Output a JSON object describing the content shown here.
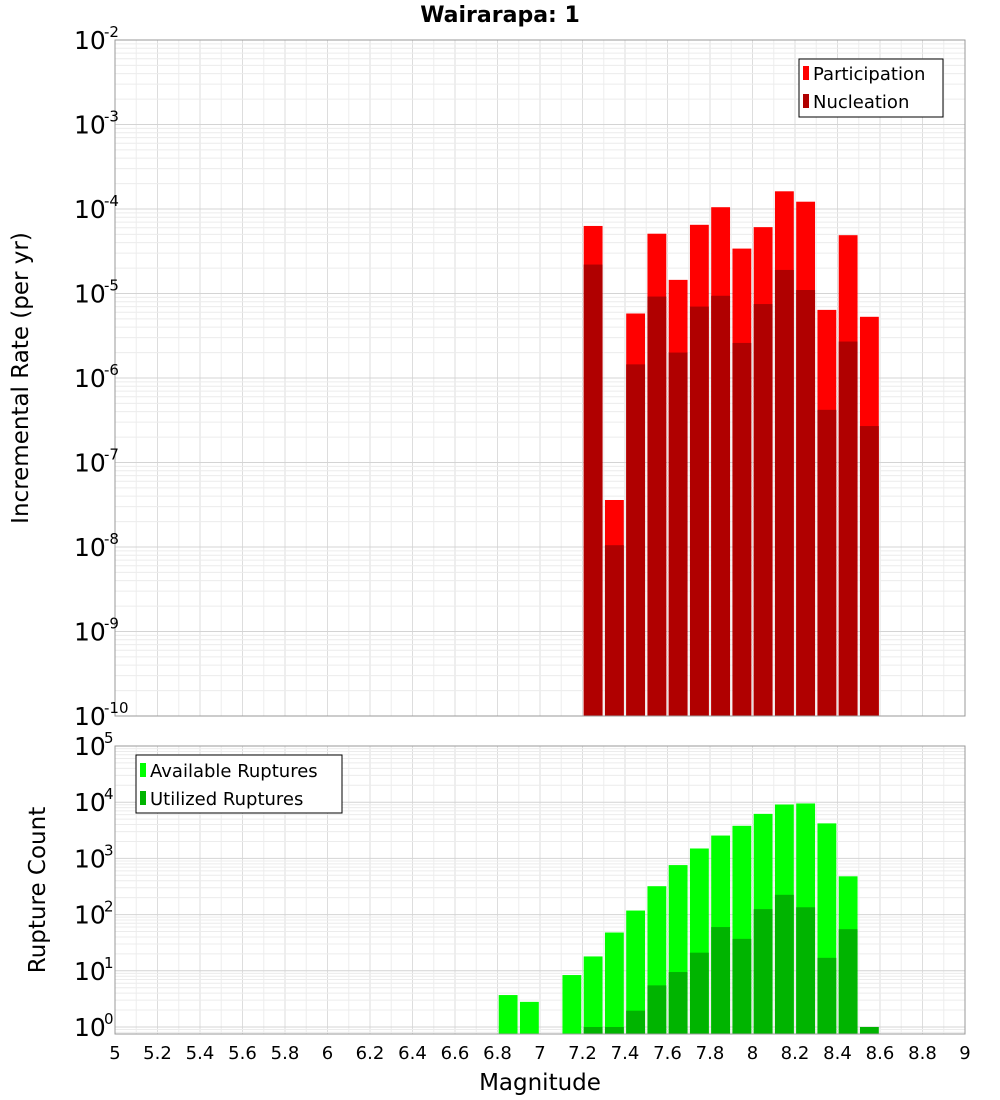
{
  "chart_data": [
    {
      "type": "bar",
      "title": "Wairarapa: 1",
      "ylabel": "Incremental Rate (per yr)",
      "xlabel": "",
      "yscale": "log",
      "ylim": [
        1e-10,
        0.01
      ],
      "xlim": [
        5,
        9
      ],
      "bin_width": 0.1,
      "y_tick_exponents": [
        "-2",
        "-3",
        "-4",
        "-5",
        "-6",
        "-7",
        "-8",
        "-9",
        "-10"
      ],
      "legend_position": "top-right",
      "grid": true,
      "x": [
        7.25,
        7.35,
        7.45,
        7.55,
        7.65,
        7.75,
        7.85,
        7.95,
        8.05,
        8.15,
        8.25,
        8.35,
        8.45,
        8.55
      ],
      "series": [
        {
          "name": "Participation",
          "color": "#ff0000",
          "values": [
            6.3e-05,
            3.6e-08,
            5.8e-06,
            5.1e-05,
            1.45e-05,
            6.5e-05,
            0.000105,
            3.4e-05,
            6.1e-05,
            0.000162,
            0.000122,
            6.4e-06,
            4.9e-05,
            5.3e-06
          ]
        },
        {
          "name": "Nucleation",
          "color": "#b00000",
          "values": [
            2.2e-05,
            1.05e-08,
            1.45e-06,
            9.2e-06,
            2e-06,
            7e-06,
            9.4e-06,
            2.6e-06,
            7.5e-06,
            1.9e-05,
            1.1e-05,
            4.2e-07,
            2.7e-06,
            2.7e-07
          ]
        }
      ]
    },
    {
      "type": "bar",
      "title": "",
      "ylabel": "Rupture Count",
      "xlabel": "Magnitude",
      "yscale": "log",
      "ylim": [
        0.75,
        100000
      ],
      "xlim": [
        5,
        9
      ],
      "bin_width": 0.1,
      "y_tick_exponents": [
        "5",
        "4",
        "3",
        "2",
        "1",
        "0"
      ],
      "x_tick_labels": [
        "5",
        "5.2",
        "5.4",
        "5.6",
        "5.8",
        "6",
        "6.2",
        "6.4",
        "6.6",
        "6.8",
        "7",
        "7.2",
        "7.4",
        "7.6",
        "7.8",
        "8",
        "8.2",
        "8.4",
        "8.6",
        "8.8",
        "9"
      ],
      "legend_position": "top-left",
      "grid": true,
      "x": [
        6.85,
        6.95,
        7.15,
        7.25,
        7.35,
        7.45,
        7.55,
        7.65,
        7.75,
        7.85,
        7.95,
        8.05,
        8.15,
        8.25,
        8.35,
        8.45,
        8.55
      ],
      "series": [
        {
          "name": "Available Ruptures",
          "color": "#00ff00",
          "values": [
            3.7,
            2.8,
            8.4,
            18,
            48,
            118,
            320,
            760,
            1500,
            2550,
            3800,
            6200,
            9100,
            9500,
            4200,
            480,
            0
          ]
        },
        {
          "name": "Utilized Ruptures",
          "color": "#00b400",
          "values": [
            0,
            0,
            0,
            1,
            1,
            1.95,
            5.5,
            9.5,
            21,
            60,
            37,
            125,
            225,
            135,
            17,
            55,
            1
          ]
        }
      ]
    }
  ]
}
